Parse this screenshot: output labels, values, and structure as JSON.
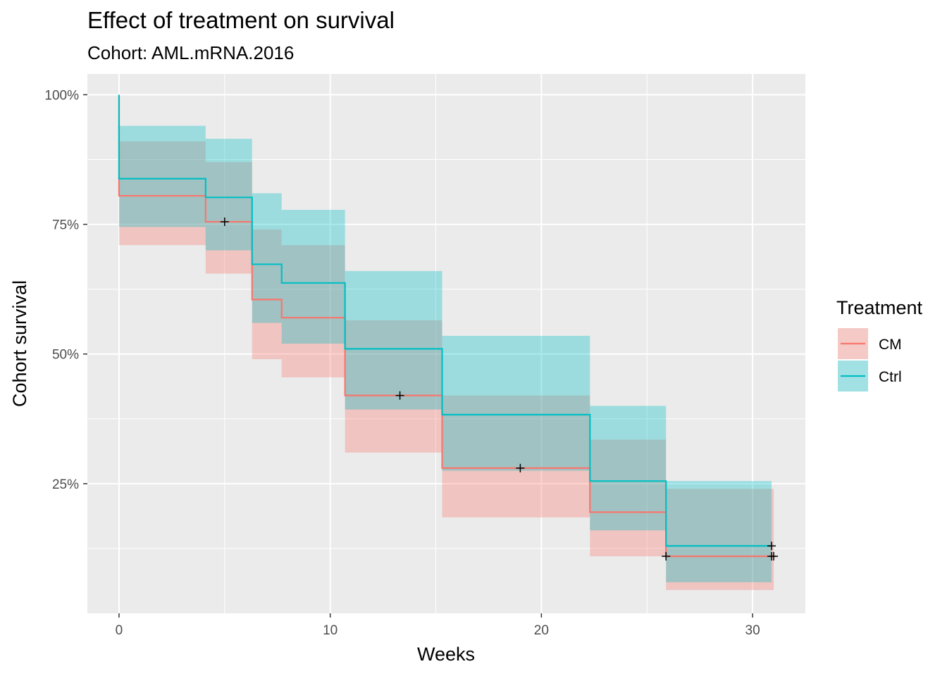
{
  "chart_data": {
    "type": "line",
    "subtype": "kaplan-meier step with confidence bands",
    "title": "Effect of treatment on survival",
    "subtitle": "Cohort: AML.mRNA.2016",
    "xlabel": "Weeks",
    "ylabel": "Cohort survival",
    "xlim": [
      -1.5,
      32.5
    ],
    "ylim": [
      0.0,
      1.04
    ],
    "x_ticks": [
      0,
      10,
      20,
      30
    ],
    "x_tick_labels": [
      "0",
      "10",
      "20",
      "30"
    ],
    "y_ticks": [
      0.25,
      0.5,
      0.75,
      1.0
    ],
    "y_tick_labels": [
      "25%",
      "50%",
      "75%",
      "100%"
    ],
    "legend_title": "Treatment",
    "legend_position": "right",
    "series": [
      {
        "name": "CM",
        "color": "#F8766D",
        "steps": [
          {
            "x0": 0,
            "x1": 4.1,
            "y": 0.805,
            "lower": 0.71,
            "upper": 0.91
          },
          {
            "x0": 4.1,
            "x1": 6.3,
            "y": 0.755,
            "lower": 0.655,
            "upper": 0.87
          },
          {
            "x0": 6.3,
            "x1": 7.7,
            "y": 0.605,
            "lower": 0.49,
            "upper": 0.74
          },
          {
            "x0": 7.7,
            "x1": 10.7,
            "y": 0.57,
            "lower": 0.455,
            "upper": 0.71
          },
          {
            "x0": 10.7,
            "x1": 15.3,
            "y": 0.42,
            "lower": 0.31,
            "upper": 0.565
          },
          {
            "x0": 15.3,
            "x1": 22.3,
            "y": 0.28,
            "lower": 0.185,
            "upper": 0.42
          },
          {
            "x0": 22.3,
            "x1": 25.9,
            "y": 0.195,
            "lower": 0.11,
            "upper": 0.335
          },
          {
            "x0": 25.9,
            "x1": 31.0,
            "y": 0.11,
            "lower": 0.045,
            "upper": 0.24
          }
        ],
        "censored": [
          {
            "x": 5.0,
            "y": 0.755
          },
          {
            "x": 13.3,
            "y": 0.42
          },
          {
            "x": 19.0,
            "y": 0.28
          },
          {
            "x": 25.9,
            "y": 0.11
          },
          {
            "x": 30.9,
            "y": 0.11
          },
          {
            "x": 31.0,
            "y": 0.11
          }
        ]
      },
      {
        "name": "Ctrl",
        "color": "#00BFC4",
        "steps": [
          {
            "x0": 0,
            "x1": 4.1,
            "y": 0.838,
            "lower": 0.745,
            "upper": 0.94
          },
          {
            "x0": 4.1,
            "x1": 6.3,
            "y": 0.802,
            "lower": 0.7,
            "upper": 0.915
          },
          {
            "x0": 6.3,
            "x1": 7.7,
            "y": 0.673,
            "lower": 0.56,
            "upper": 0.81
          },
          {
            "x0": 7.7,
            "x1": 10.7,
            "y": 0.637,
            "lower": 0.52,
            "upper": 0.778
          },
          {
            "x0": 10.7,
            "x1": 15.3,
            "y": 0.51,
            "lower": 0.393,
            "upper": 0.66
          },
          {
            "x0": 15.3,
            "x1": 22.3,
            "y": 0.383,
            "lower": 0.275,
            "upper": 0.535
          },
          {
            "x0": 22.3,
            "x1": 25.9,
            "y": 0.255,
            "lower": 0.16,
            "upper": 0.4
          },
          {
            "x0": 25.9,
            "x1": 30.9,
            "y": 0.13,
            "lower": 0.06,
            "upper": 0.255
          }
        ],
        "censored": [
          {
            "x": 30.9,
            "y": 0.13
          }
        ]
      }
    ]
  }
}
